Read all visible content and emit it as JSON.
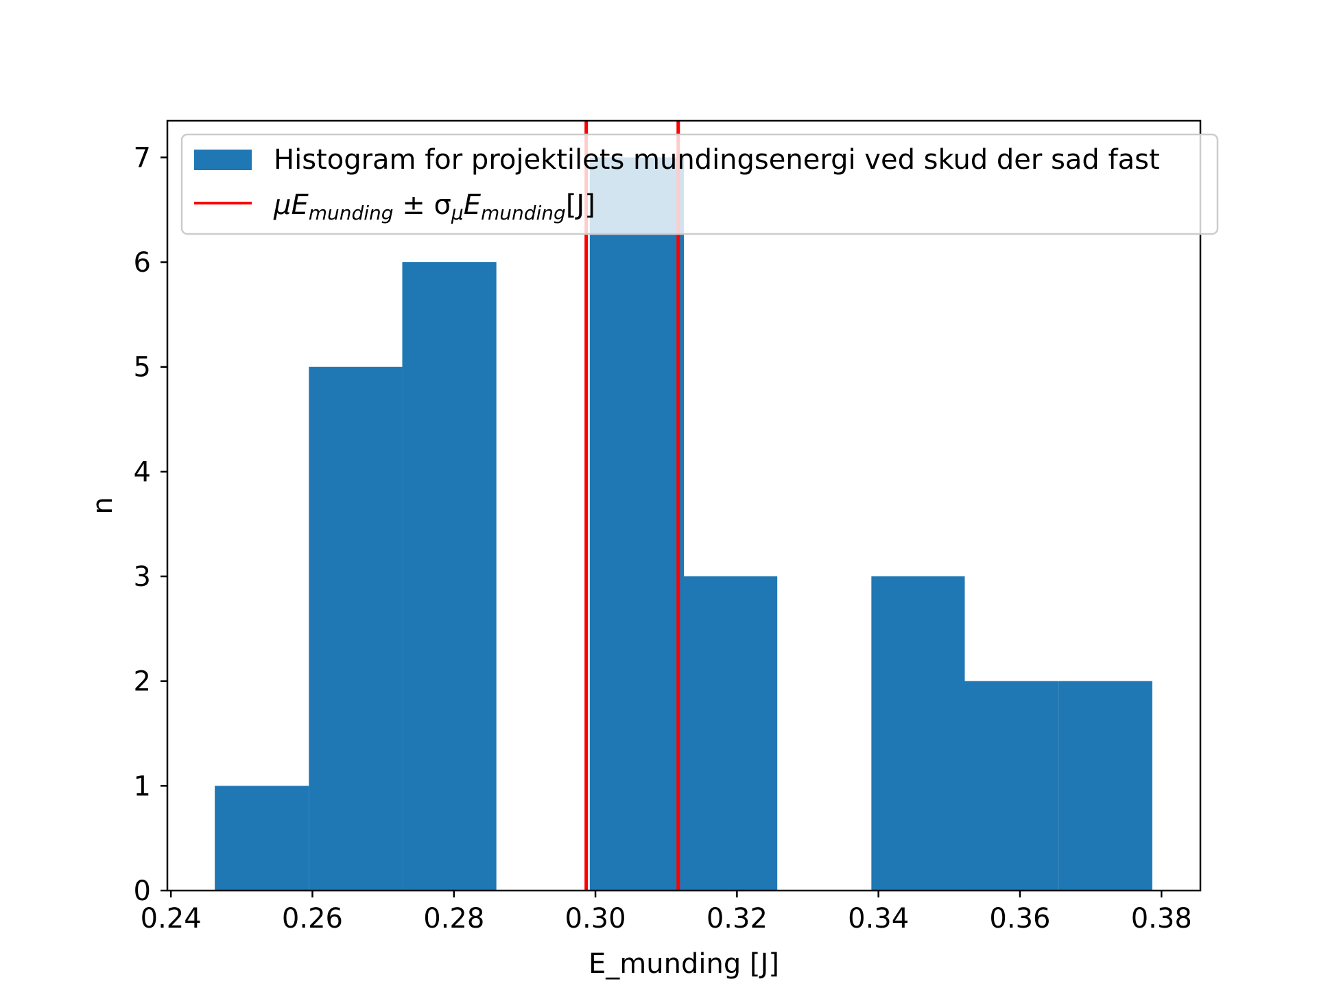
{
  "chart_data": {
    "type": "bar",
    "title": "",
    "xlabel": "E_munding [J]",
    "ylabel": "n",
    "xlim": [
      0.2395,
      0.3855
    ],
    "ylim": [
      0,
      7.35
    ],
    "grid": false,
    "legend_position": "top-right",
    "x_ticks": [
      0.24,
      0.26,
      0.28,
      0.3,
      0.32,
      0.34,
      0.36,
      0.38
    ],
    "x_tick_labels": [
      "0.24",
      "0.26",
      "0.28",
      "0.30",
      "0.32",
      "0.34",
      "0.36",
      "0.38"
    ],
    "y_ticks": [
      0,
      1,
      2,
      3,
      4,
      5,
      6,
      7
    ],
    "y_tick_labels": [
      "0",
      "1",
      "2",
      "3",
      "4",
      "5",
      "6",
      "7"
    ],
    "series": [
      {
        "name": "Histogram for projektilets mundingsenergi ved skud der sad fast",
        "kind": "histogram",
        "color": "#1f77b4",
        "bin_edges": [
          0.2462,
          0.2595,
          0.2727,
          0.286,
          0.2992,
          0.3125,
          0.3257,
          0.339,
          0.3522,
          0.3655,
          0.3787
        ],
        "counts": [
          1,
          5,
          6,
          0,
          7,
          3,
          0,
          3,
          2,
          2
        ]
      },
      {
        "name": "μE_munding ± σ_μE_munding [J]",
        "kind": "vlines",
        "color": "#ff0000",
        "x": [
          0.2987,
          0.3117
        ]
      }
    ],
    "legend": {
      "entry1": "Histogram for projektilets mundingsenergi ved skud der sad fast",
      "entry2_mu": "μE",
      "entry2_sub1": "munding",
      "entry2_pm": " ± σ",
      "entry2_sub_mu": "μ",
      "entry2_E": "E",
      "entry2_sub2": "munding",
      "entry2_unit": "[J]"
    }
  }
}
